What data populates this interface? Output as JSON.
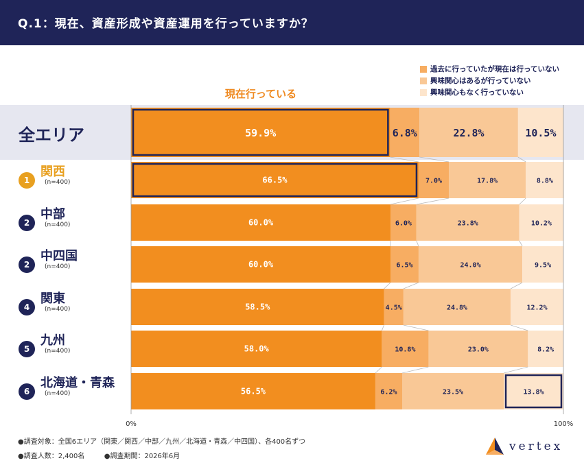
{
  "header": {
    "title": "Q.1：現在、資産形成や資産運用を行っていますか？"
  },
  "current_label": "現在行っている",
  "colors": {
    "navy": "#1f2458",
    "current": "#f28e1f",
    "past": "#f7ad62",
    "interested": "#f9c896",
    "not_interested": "#fde5cc",
    "gold": "#e8a020"
  },
  "legend": [
    {
      "label": "過去に行っていたが現在は行っていない",
      "color": "#f7ad62"
    },
    {
      "label": "興味関心はあるが行っていない",
      "color": "#f9c896"
    },
    {
      "label": "興味関心もなく行っていない",
      "color": "#fde5cc"
    }
  ],
  "chart_data": {
    "type": "bar",
    "orientation": "horizontal-stacked-100",
    "xlim": [
      0,
      100
    ],
    "x_ticks": [
      "0%",
      "100%"
    ],
    "series_names": [
      "現在行っている",
      "過去に行っていたが現在は行っていない",
      "興味関心はあるが行っていない",
      "興味関心もなく行っていない"
    ],
    "rows": [
      {
        "name": "全エリア",
        "rank": "",
        "n": "",
        "values": [
          59.9,
          6.8,
          22.8,
          10.5
        ],
        "labels": [
          "59.9%",
          "6.8%",
          "22.8%",
          "10.5%"
        ],
        "highlight": 0
      },
      {
        "name": "関西",
        "rank": "1",
        "n": "(n=400)",
        "values": [
          66.5,
          7.0,
          17.8,
          8.8
        ],
        "labels": [
          "66.5%",
          "7.0%",
          "17.8%",
          "8.8%"
        ],
        "highlight": 0
      },
      {
        "name": "中部",
        "rank": "2",
        "n": "(n=400)",
        "values": [
          60.0,
          6.0,
          23.8,
          10.2
        ],
        "labels": [
          "60.0%",
          "6.0%",
          "23.8%",
          "10.2%"
        ],
        "highlight": -1
      },
      {
        "name": "中四国",
        "rank": "2",
        "n": "(n=400)",
        "values": [
          60.0,
          6.5,
          24.0,
          9.5
        ],
        "labels": [
          "60.0%",
          "6.5%",
          "24.0%",
          "9.5%"
        ],
        "highlight": -1
      },
      {
        "name": "関東",
        "rank": "4",
        "n": "(n=400)",
        "values": [
          58.5,
          4.5,
          24.8,
          12.2
        ],
        "labels": [
          "58.5%",
          "4.5%",
          "24.8%",
          "12.2%"
        ],
        "highlight": -1
      },
      {
        "name": "九州",
        "rank": "5",
        "n": "(n=400)",
        "values": [
          58.0,
          10.8,
          23.0,
          8.2
        ],
        "labels": [
          "58.0%",
          "10.8%",
          "23.0%",
          "8.2%"
        ],
        "highlight": -1
      },
      {
        "name": "北海道・青森",
        "rank": "6",
        "n": "(n=400)",
        "values": [
          56.5,
          6.2,
          23.5,
          13.8
        ],
        "labels": [
          "56.5%",
          "6.2%",
          "23.5%",
          "13.8%"
        ],
        "highlight": 3
      }
    ]
  },
  "footer": {
    "line1": "●調査対象：全国6エリア（関東／関西／中部／九州／北海道・青森／中四国）、各400名ずつ",
    "line2a": "●調査人数：2,400名",
    "line2b": "●調査期間：2026年6月"
  },
  "logo": {
    "text": "vertex"
  }
}
